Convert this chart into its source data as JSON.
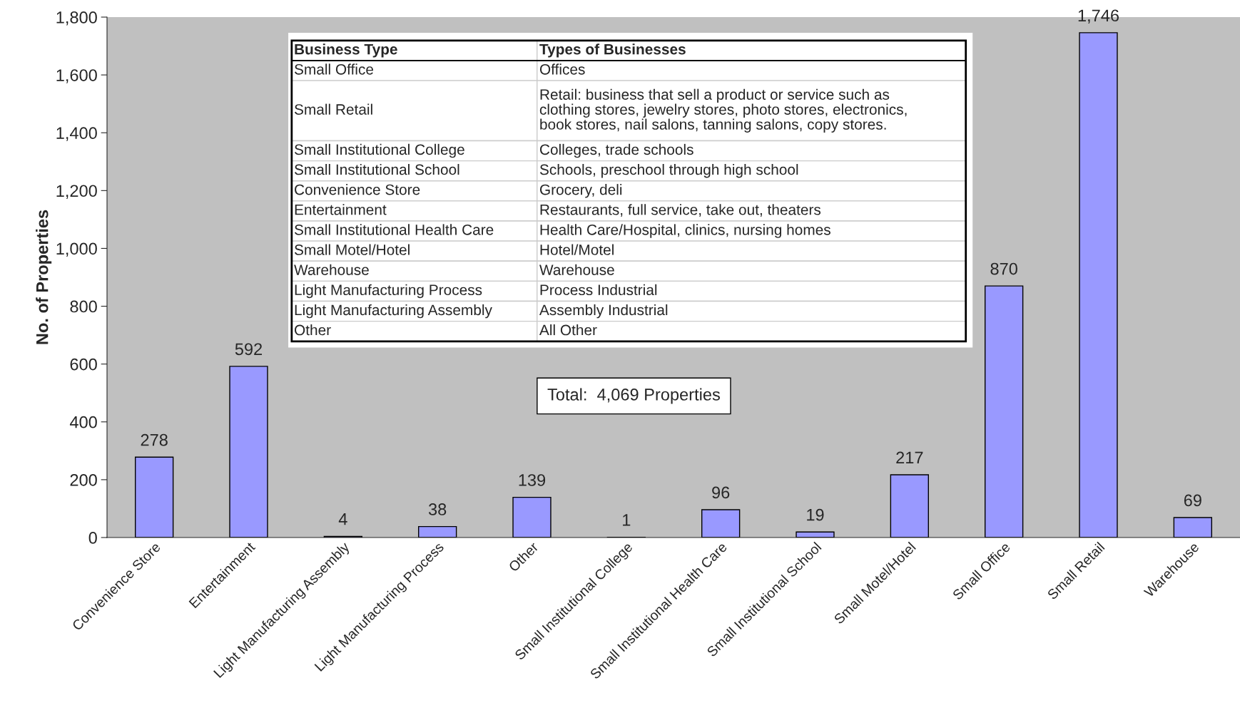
{
  "chart_data": {
    "type": "bar",
    "ylabel": "No. of Properties",
    "categories": [
      "Convenience Store",
      "Entertainment",
      "Light Manufacturing Assembly",
      "Light Manufacturing Process",
      "Other",
      "Small Institutional College",
      "Small Institutional Health Care",
      "Small Institutional School",
      "Small Motel/Hotel",
      "Small Office",
      "Small Retail",
      "Warehouse"
    ],
    "values": [
      278,
      592,
      4,
      38,
      139,
      1,
      96,
      19,
      217,
      870,
      1746,
      69
    ],
    "color": "#9999ff",
    "ylim": [
      0,
      1800
    ],
    "yticks": [
      0,
      200,
      400,
      600,
      800,
      {
        "value": 1000,
        "label": "1,000"
      },
      {
        "value": 1200,
        "label": "1,200"
      },
      {
        "value": 1400,
        "label": "1,400"
      },
      {
        "value": 1600,
        "label": "1,600"
      },
      {
        "value": 1800,
        "label": "1,800"
      }
    ],
    "value_labels": [
      "278",
      "592",
      "4",
      "38",
      "139",
      "1",
      "96",
      "19",
      "217",
      "870",
      "1,746",
      "69"
    ],
    "grid": false,
    "annotations": [
      "Business Type",
      "Types of Businesses",
      "Small Office",
      "Offices",
      "Small Retail",
      "Retail: business that sell a product or service such as\nclothing stores, jewelry stores, photo stores, electronics,\nbook stores, nail salons, tanning salons, copy stores.",
      "Small Institutional College",
      "Colleges, trade schools",
      "Small Institutional School",
      "Schools, preschool through high school",
      "Convenience Store",
      "Grocery, deli",
      "Entertainment",
      "Restaurants, full service, take out, theaters",
      "Small Institutional Health Care",
      "Health Care/Hospital, clinics, nursing homes",
      "Small Motel/Hotel",
      "Hotel/Motel",
      "Warehouse",
      "Warehouse",
      "Light Manufacturing Process",
      "Process Industrial",
      "Light Manufacturing Assembly",
      "Assembly Industrial",
      "Other",
      "All Other",
      "Total:  4,069 Properties"
    ]
  }
}
